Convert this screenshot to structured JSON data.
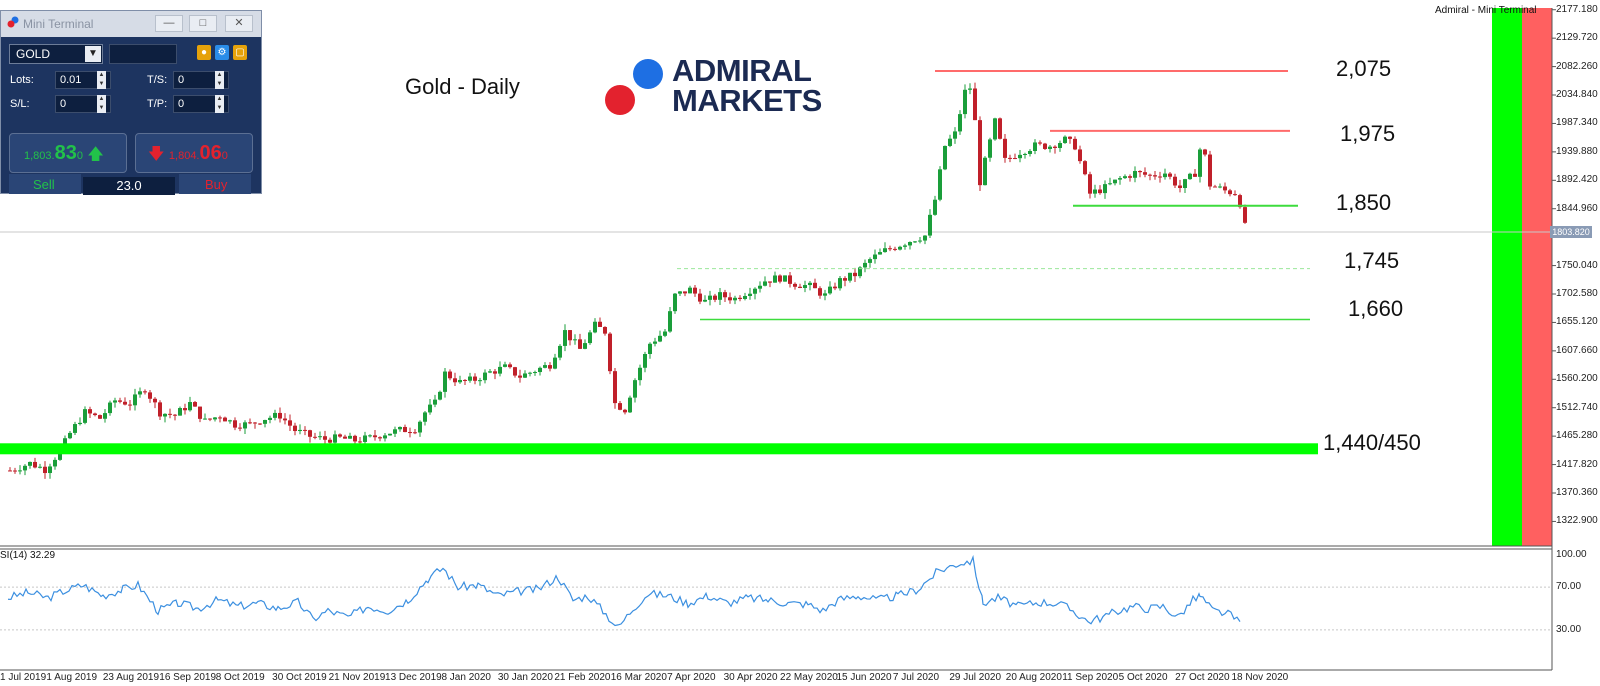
{
  "window_title": "Mini Terminal",
  "header_right": "Admiral - Mini Terminal",
  "chart_title": "Gold - Daily",
  "brand": {
    "line1": "ADMIRAL",
    "line2": "MARKETS",
    "blue": "#1e6fe3",
    "red": "#e3222e",
    "navy": "#1b2a52"
  },
  "terminal": {
    "symbol": "GOLD",
    "lots_label": "Lots:",
    "lots_value": "0.01",
    "ts_label": "T/S:",
    "ts_value": "0",
    "sl_label": "S/L:",
    "sl_value": "0",
    "tp_label": "T/P:",
    "tp_value": "0",
    "sell_small": "1,803.",
    "sell_big": "83",
    "sell_sup": "0",
    "buy_small": "1,804.",
    "buy_big": "06",
    "buy_sup": "0",
    "sell_label": "Sell",
    "buy_label": "Buy",
    "volume": "23.0"
  },
  "current_price_label": "1803.820",
  "rsi_label": "SI(14) 32.29",
  "colors": {
    "up": "#1a9e3a",
    "down": "#c0202a",
    "green_zone": "#00ff00",
    "red_zone": "#ff6060",
    "rsi_line": "#3b8fe0",
    "resistance": "#ff6b6b",
    "support": "#3ddc3d"
  },
  "chart_data": {
    "type": "candlestick",
    "title": "Gold - Daily",
    "price_axis": {
      "min": 1300,
      "max": 2190,
      "ticks": [
        "2177.180",
        "2129.720",
        "2082.260",
        "2034.840",
        "1987.340",
        "1939.880",
        "1892.420",
        "1844.960",
        "1750.040",
        "1702.580",
        "1655.120",
        "1607.660",
        "1560.200",
        "1512.740",
        "1465.280",
        "1417.820",
        "1370.360",
        "1322.900"
      ]
    },
    "date_labels": [
      "1 Jul 2019",
      "1 Aug 2019",
      "23 Aug 2019",
      "16 Sep 2019",
      "8 Oct 2019",
      "30 Oct 2019",
      "21 Nov 2019",
      "13 Dec 2019",
      "8 Jan 2020",
      "30 Jan 2020",
      "21 Feb 2020",
      "16 Mar 2020",
      "7 Apr 2020",
      "30 Apr 2020",
      "22 May 2020",
      "15 Jun 2020",
      "7 Jul 2020",
      "29 Jul 2020",
      "20 Aug 2020",
      "11 Sep 2020",
      "5 Oct 2020",
      "27 Oct 2020",
      "18 Nov 2020"
    ],
    "levels": [
      {
        "label": "2,075",
        "value": 2075,
        "kind": "resistance"
      },
      {
        "label": "1,975",
        "value": 1975,
        "kind": "resistance"
      },
      {
        "label": "1,850",
        "value": 1850,
        "kind": "support"
      },
      {
        "label": "1,745",
        "value": 1745,
        "kind": "support-dashed"
      },
      {
        "label": "1,660",
        "value": 1660,
        "kind": "support"
      },
      {
        "label": "1,440/450",
        "value": 1445,
        "kind": "support-zone"
      }
    ],
    "close_path": [
      [
        0,
        1408
      ],
      [
        20,
        1420
      ],
      [
        35,
        1410
      ],
      [
        50,
        1440
      ],
      [
        60,
        1470
      ],
      [
        75,
        1505
      ],
      [
        90,
        1495
      ],
      [
        105,
        1525
      ],
      [
        120,
        1520
      ],
      [
        135,
        1545
      ],
      [
        150,
        1505
      ],
      [
        165,
        1500
      ],
      [
        180,
        1520
      ],
      [
        195,
        1490
      ],
      [
        210,
        1500
      ],
      [
        225,
        1485
      ],
      [
        240,
        1485
      ],
      [
        255,
        1495
      ],
      [
        270,
        1500
      ],
      [
        285,
        1475
      ],
      [
        300,
        1465
      ],
      [
        315,
        1460
      ],
      [
        330,
        1462
      ],
      [
        345,
        1458
      ],
      [
        360,
        1462
      ],
      [
        375,
        1470
      ],
      [
        390,
        1475
      ],
      [
        405,
        1478
      ],
      [
        415,
        1505
      ],
      [
        425,
        1520
      ],
      [
        435,
        1570
      ],
      [
        450,
        1555
      ],
      [
        465,
        1560
      ],
      [
        480,
        1572
      ],
      [
        495,
        1580
      ],
      [
        510,
        1565
      ],
      [
        525,
        1575
      ],
      [
        540,
        1585
      ],
      [
        555,
        1640
      ],
      [
        570,
        1610
      ],
      [
        585,
        1650
      ],
      [
        595,
        1640
      ],
      [
        605,
        1520
      ],
      [
        615,
        1510
      ],
      [
        625,
        1560
      ],
      [
        640,
        1620
      ],
      [
        655,
        1640
      ],
      [
        665,
        1700
      ],
      [
        680,
        1710
      ],
      [
        695,
        1690
      ],
      [
        710,
        1700
      ],
      [
        725,
        1695
      ],
      [
        740,
        1710
      ],
      [
        755,
        1725
      ],
      [
        770,
        1730
      ],
      [
        785,
        1720
      ],
      [
        800,
        1715
      ],
      [
        815,
        1700
      ],
      [
        830,
        1725
      ],
      [
        845,
        1735
      ],
      [
        860,
        1760
      ],
      [
        875,
        1775
      ],
      [
        890,
        1785
      ],
      [
        905,
        1795
      ],
      [
        915,
        1800
      ],
      [
        925,
        1860
      ],
      [
        935,
        1950
      ],
      [
        945,
        1970
      ],
      [
        955,
        2040
      ],
      [
        962,
        2050
      ],
      [
        970,
        1890
      ],
      [
        985,
        1990
      ],
      [
        995,
        1925
      ],
      [
        1010,
        1940
      ],
      [
        1025,
        1950
      ],
      [
        1040,
        1950
      ],
      [
        1055,
        1960
      ],
      [
        1065,
        1950
      ],
      [
        1080,
        1870
      ],
      [
        1095,
        1880
      ],
      [
        1110,
        1895
      ],
      [
        1125,
        1905
      ],
      [
        1140,
        1900
      ],
      [
        1155,
        1905
      ],
      [
        1170,
        1880
      ],
      [
        1185,
        1905
      ],
      [
        1192,
        1960
      ],
      [
        1200,
        1885
      ],
      [
        1215,
        1875
      ],
      [
        1228,
        1870
      ],
      [
        1235,
        1815
      ]
    ],
    "rsi_path": [
      [
        0,
        60
      ],
      [
        20,
        65
      ],
      [
        40,
        60
      ],
      [
        55,
        66
      ],
      [
        75,
        72
      ],
      [
        95,
        62
      ],
      [
        115,
        68
      ],
      [
        130,
        72
      ],
      [
        150,
        48
      ],
      [
        170,
        55
      ],
      [
        190,
        50
      ],
      [
        210,
        58
      ],
      [
        230,
        52
      ],
      [
        250,
        55
      ],
      [
        270,
        50
      ],
      [
        290,
        56
      ],
      [
        305,
        40
      ],
      [
        320,
        48
      ],
      [
        340,
        42
      ],
      [
        360,
        52
      ],
      [
        380,
        48
      ],
      [
        400,
        58
      ],
      [
        420,
        78
      ],
      [
        435,
        88
      ],
      [
        450,
        70
      ],
      [
        470,
        72
      ],
      [
        490,
        62
      ],
      [
        510,
        66
      ],
      [
        530,
        68
      ],
      [
        550,
        80
      ],
      [
        565,
        58
      ],
      [
        580,
        62
      ],
      [
        595,
        48
      ],
      [
        610,
        32
      ],
      [
        625,
        50
      ],
      [
        640,
        64
      ],
      [
        660,
        62
      ],
      [
        680,
        55
      ],
      [
        700,
        62
      ],
      [
        720,
        55
      ],
      [
        740,
        60
      ],
      [
        760,
        58
      ],
      [
        780,
        55
      ],
      [
        800,
        54
      ],
      [
        815,
        48
      ],
      [
        830,
        58
      ],
      [
        850,
        62
      ],
      [
        870,
        58
      ],
      [
        890,
        62
      ],
      [
        910,
        68
      ],
      [
        930,
        85
      ],
      [
        950,
        92
      ],
      [
        965,
        95
      ],
      [
        975,
        55
      ],
      [
        990,
        60
      ],
      [
        1010,
        52
      ],
      [
        1030,
        56
      ],
      [
        1050,
        55
      ],
      [
        1065,
        48
      ],
      [
        1080,
        38
      ],
      [
        1095,
        42
      ],
      [
        1110,
        48
      ],
      [
        1125,
        52
      ],
      [
        1140,
        50
      ],
      [
        1155,
        52
      ],
      [
        1170,
        42
      ],
      [
        1185,
        58
      ],
      [
        1192,
        62
      ],
      [
        1205,
        48
      ],
      [
        1220,
        45
      ],
      [
        1235,
        35
      ]
    ],
    "rsi_axis": {
      "ticks": [
        "100.00",
        "70.00",
        "30.00"
      ]
    }
  }
}
